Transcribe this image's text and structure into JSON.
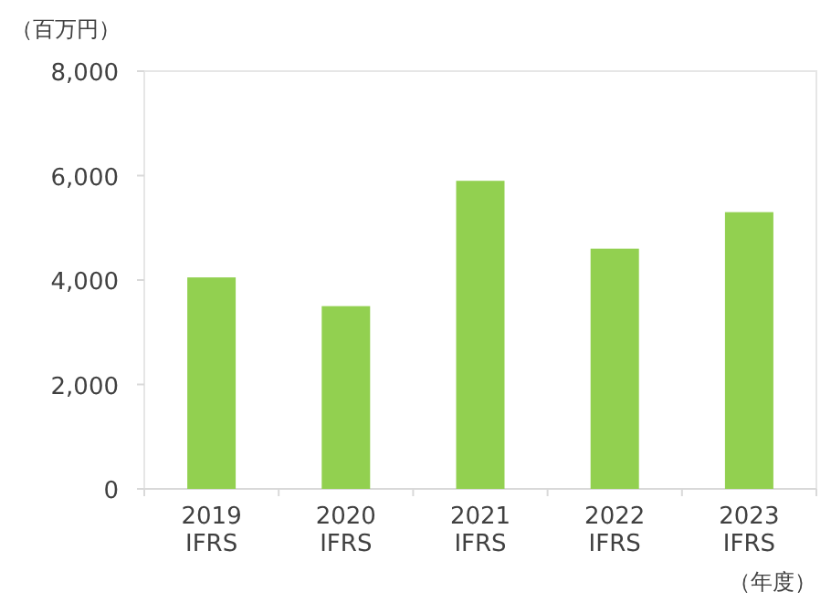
{
  "chart_data": {
    "type": "bar",
    "ylabel": "（百万円）",
    "xlabel": "（年度）",
    "categories": [
      "2019 IFRS",
      "2020 IFRS",
      "2021 IFRS",
      "2022 IFRS",
      "2023 IFRS"
    ],
    "values": [
      4050,
      3500,
      5900,
      4600,
      5300
    ],
    "color": "#92d050",
    "ylim": [
      0,
      8000
    ],
    "yticks": [
      {
        "value": 0,
        "label": "0"
      },
      {
        "value": 2000,
        "label": "2,000"
      },
      {
        "value": 4000,
        "label": "4,000"
      },
      {
        "value": 6000,
        "label": "6,000"
      },
      {
        "value": 8000,
        "label": "8,000"
      }
    ],
    "grid": false
  }
}
